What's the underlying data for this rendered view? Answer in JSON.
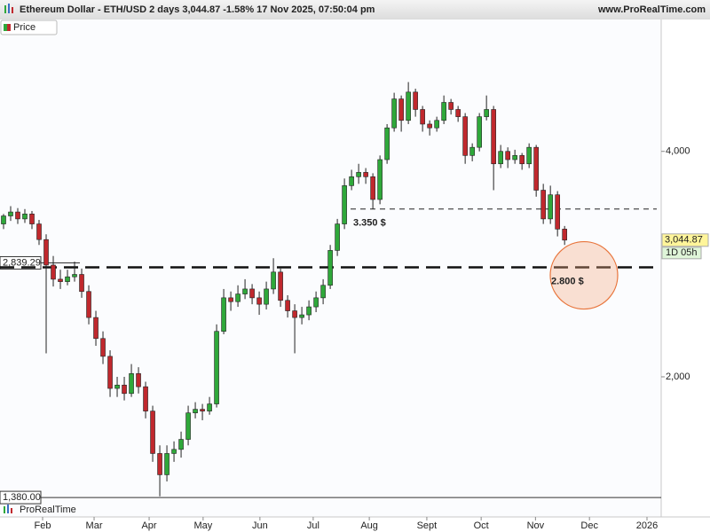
{
  "chart_data": {
    "type": "candlestick",
    "title": "Ethereum Dollar - ETH/USD 2 days 3,044.87 -1.58% 17 Nov 2025, 07:50:04 pm",
    "source": "www.ProRealTime.com",
    "brand": "ProRealTime",
    "log_scale": true,
    "ylim": [
      1300,
      6000
    ],
    "yticks": [
      {
        "value": 2000,
        "label": "2,000"
      },
      {
        "value": 4000,
        "label": "4,000"
      }
    ],
    "xlim": [
      -0.5,
      92.6
    ],
    "xticks": [
      {
        "value": 5.5,
        "label": "Feb"
      },
      {
        "value": 12.75,
        "label": "Mar"
      },
      {
        "value": 20.5,
        "label": "Apr"
      },
      {
        "value": 28.1,
        "label": "May"
      },
      {
        "value": 36.1,
        "label": "Jun"
      },
      {
        "value": 43.6,
        "label": "Jul"
      },
      {
        "value": 51.5,
        "label": "Aug"
      },
      {
        "value": 59.6,
        "label": "Sept"
      },
      {
        "value": 67.25,
        "label": "Oct"
      },
      {
        "value": 74.9,
        "label": "Nov"
      },
      {
        "value": 82.5,
        "label": "Dec"
      },
      {
        "value": 90.6,
        "label": "2026"
      }
    ],
    "series": [
      {
        "name": "Price",
        "up_color": "#2fa83a",
        "down_color": "#c0282d",
        "open": [
          3200,
          3280,
          3320,
          3250,
          3300,
          3200,
          3050,
          2820,
          2700,
          2680,
          2720,
          2740,
          2600,
          2400,
          2250,
          2130,
          1930,
          1950,
          1900,
          2020,
          1940,
          1800,
          1580,
          1480,
          1580,
          1600,
          1650,
          1790,
          1810,
          1800,
          1840,
          2300,
          2550,
          2520,
          2580,
          2620,
          2550,
          2500,
          2620,
          2760,
          2530,
          2450,
          2400,
          2420,
          2480,
          2550,
          2650,
          2950,
          3200,
          3600,
          3700,
          3750,
          3700,
          3450,
          3900,
          4300,
          4700,
          4400,
          4800,
          4550,
          4350,
          4300,
          4400,
          4650,
          4550,
          4450,
          3950,
          4050,
          4450,
          4550,
          3850,
          4000,
          3900,
          3950,
          3850,
          4050,
          3550,
          3250,
          3500,
          3150
        ],
        "high": [
          3300,
          3380,
          3360,
          3350,
          3330,
          3240,
          3100,
          2900,
          2780,
          2780,
          2850,
          2790,
          2650,
          2450,
          2300,
          2170,
          2000,
          2000,
          2080,
          2060,
          1970,
          1830,
          1620,
          1620,
          1640,
          1690,
          1830,
          1850,
          1840,
          1880,
          2350,
          2620,
          2600,
          2650,
          2700,
          2660,
          2600,
          2680,
          2880,
          2790,
          2570,
          2500,
          2480,
          2530,
          2600,
          2700,
          3000,
          3250,
          3680,
          3780,
          3850,
          3800,
          3740,
          3950,
          4350,
          4790,
          4750,
          4950,
          4850,
          4600,
          4400,
          4450,
          4750,
          4700,
          4600,
          4500,
          4100,
          4500,
          4750,
          4600,
          4080,
          4050,
          4020,
          3980,
          4100,
          4080,
          3620,
          3600,
          3540,
          3180
        ],
        "low": [
          3150,
          3230,
          3200,
          3210,
          3150,
          3000,
          2150,
          2640,
          2620,
          2650,
          2680,
          2550,
          2350,
          2200,
          2080,
          1880,
          1880,
          1860,
          1880,
          1900,
          1760,
          1540,
          1385,
          1450,
          1540,
          1560,
          1620,
          1760,
          1750,
          1780,
          1820,
          2280,
          2450,
          2480,
          2540,
          2500,
          2420,
          2460,
          2580,
          2480,
          2400,
          2150,
          2350,
          2380,
          2440,
          2500,
          2620,
          2900,
          3150,
          3550,
          3620,
          3620,
          3350,
          3400,
          3850,
          4250,
          4250,
          4350,
          4450,
          4250,
          4200,
          4250,
          4350,
          4480,
          4380,
          3850,
          3880,
          4000,
          4400,
          3550,
          3800,
          3800,
          3850,
          3780,
          3800,
          3480,
          3200,
          3200,
          3080,
          3000
        ],
        "close": [
          3280,
          3320,
          3250,
          3300,
          3200,
          3050,
          2820,
          2700,
          2680,
          2720,
          2740,
          2600,
          2400,
          2250,
          2130,
          1930,
          1950,
          1900,
          2020,
          1940,
          1800,
          1580,
          1480,
          1580,
          1600,
          1650,
          1790,
          1810,
          1800,
          1840,
          2300,
          2550,
          2520,
          2580,
          2620,
          2550,
          2500,
          2620,
          2760,
          2530,
          2450,
          2400,
          2420,
          2480,
          2550,
          2650,
          2950,
          3200,
          3600,
          3700,
          3750,
          3700,
          3450,
          3900,
          4300,
          4700,
          4400,
          4800,
          4550,
          4350,
          4300,
          4400,
          4650,
          4550,
          4450,
          3950,
          4050,
          4450,
          4550,
          3850,
          4000,
          3900,
          3950,
          3850,
          4050,
          3550,
          3250,
          3500,
          3150,
          3044.87
        ]
      }
    ],
    "last_price": {
      "value": 3044.87,
      "label": "3,044.87"
    },
    "countdown": "1D 05h",
    "levels": [
      {
        "value": 2839.29,
        "label": "2,839.29"
      },
      {
        "value": 1380,
        "label": "1,380.00"
      }
    ],
    "annotations": [
      {
        "value": 3350,
        "label": "3.350 $"
      },
      {
        "value": 2800,
        "label": "2.800 $"
      }
    ]
  }
}
